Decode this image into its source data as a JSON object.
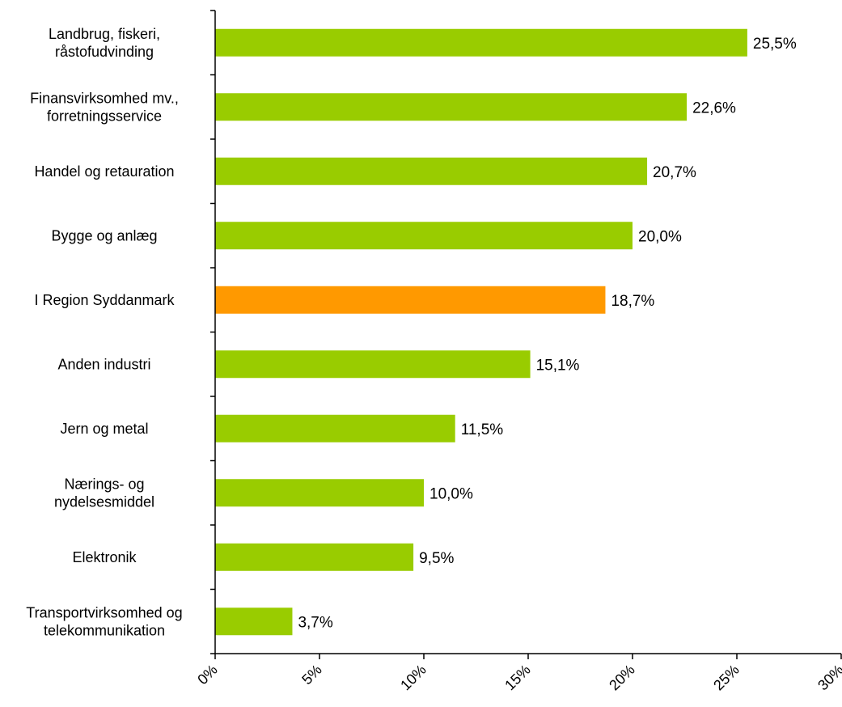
{
  "chart_data": {
    "type": "bar",
    "orientation": "horizontal",
    "categories": [
      [
        "Landbrug, fiskeri,",
        "råstofudvinding"
      ],
      [
        "Finansvirksomhed mv.,",
        "forretningsservice"
      ],
      [
        "Handel og retauration"
      ],
      [
        "Bygge og anlæg"
      ],
      [
        "I Region Syddanmark"
      ],
      [
        "Anden industri"
      ],
      [
        "Jern og metal"
      ],
      [
        "Nærings- og",
        "nydelsesmiddel"
      ],
      [
        "Elektronik"
      ],
      [
        "Transportvirksomhed og",
        "telekommunikation"
      ]
    ],
    "values": [
      25.5,
      22.6,
      20.7,
      20.0,
      18.7,
      15.1,
      11.5,
      10.0,
      9.5,
      3.7
    ],
    "value_labels": [
      "25,5%",
      "22,6%",
      "20,7%",
      "20,0%",
      "18,7%",
      "15,1%",
      "11,5%",
      "10,0%",
      "9,5%",
      "3,7%"
    ],
    "highlight_index": 4,
    "colors": {
      "bar": "#99cc00",
      "highlight": "#ff9900"
    },
    "xlim": [
      0,
      30
    ],
    "xticks": [
      0,
      5,
      10,
      15,
      20,
      25,
      30
    ],
    "xtick_labels": [
      "0%",
      "5%",
      "10%",
      "15%",
      "20%",
      "25%",
      "30%"
    ],
    "grid": false,
    "legend": false
  }
}
